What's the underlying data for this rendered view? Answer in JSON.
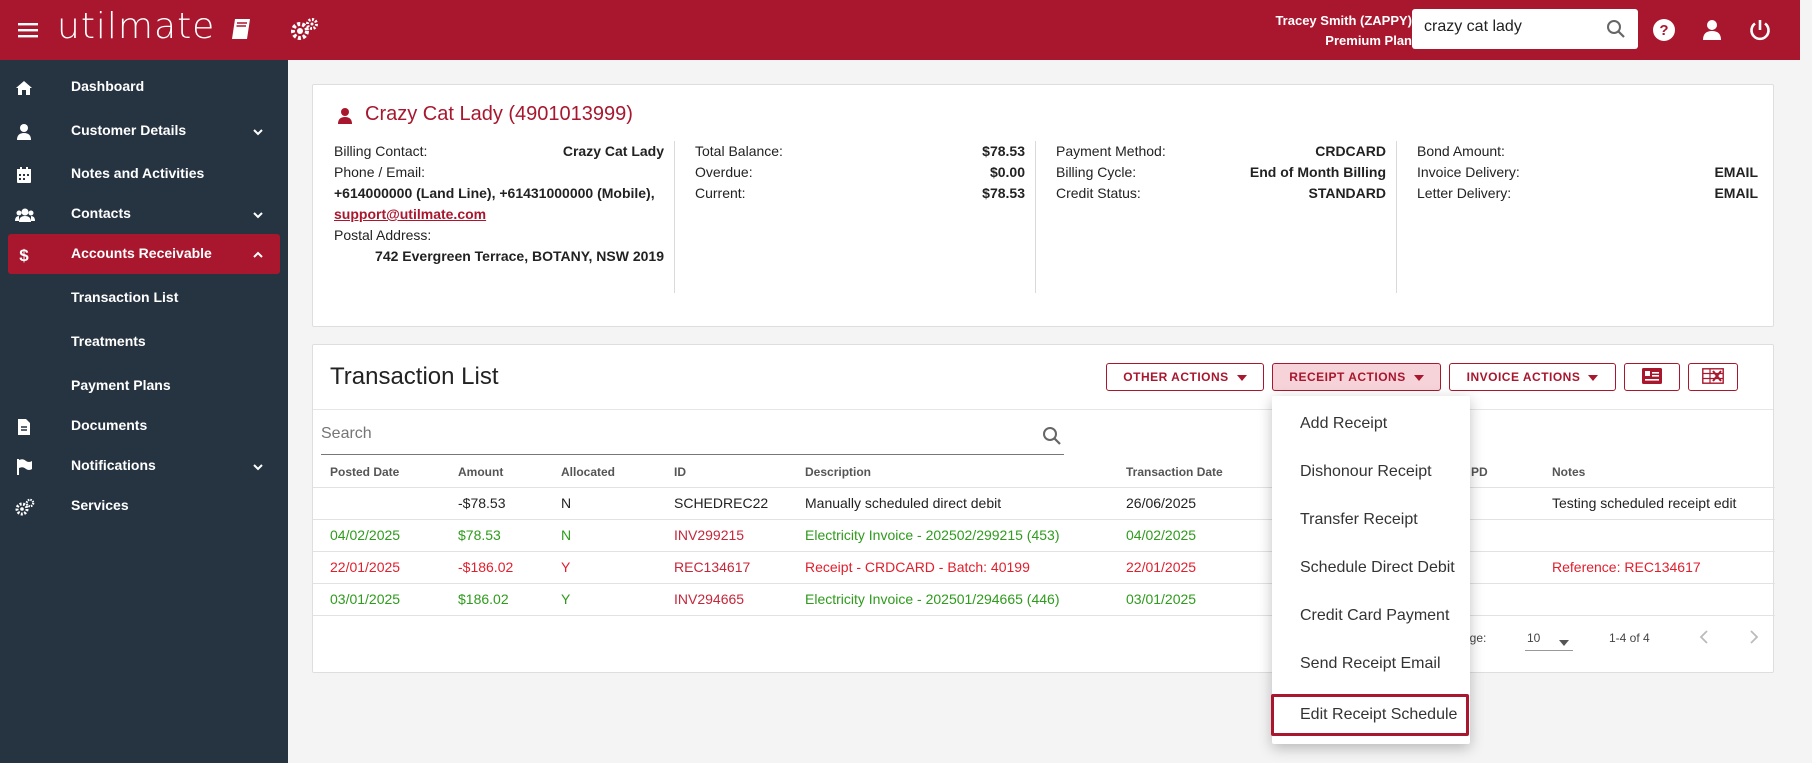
{
  "header": {
    "logo": "utilmate",
    "user_name": "Tracey Smith (ZAPPY)",
    "plan": "Premium Plan",
    "search_value": "crazy cat lady"
  },
  "sidebar": {
    "items": [
      {
        "label": "Dashboard"
      },
      {
        "label": "Customer Details"
      },
      {
        "label": "Notes and Activities"
      },
      {
        "label": "Contacts"
      },
      {
        "label": "Accounts Receivable"
      },
      {
        "label": "Transaction List"
      },
      {
        "label": "Treatments"
      },
      {
        "label": "Payment Plans"
      },
      {
        "label": "Documents"
      },
      {
        "label": "Notifications"
      },
      {
        "label": "Services"
      }
    ]
  },
  "customer": {
    "title": "Crazy Cat Lady (4901013999)",
    "billing_contact_label": "Billing Contact:",
    "billing_contact": "Crazy Cat Lady",
    "phone_email_label": "Phone / Email:",
    "phones": "+614000000 (Land Line), +61431000000 (Mobile),",
    "email": "support@utilmate.com",
    "postal_label": "Postal Address:",
    "postal": "742 Evergreen Terrace, BOTANY, NSW 2019",
    "total_balance_label": "Total Balance:",
    "total_balance": "$78.53",
    "overdue_label": "Overdue:",
    "overdue": "$0.00",
    "current_label": "Current:",
    "current": "$78.53",
    "payment_method_label": "Payment Method:",
    "payment_method": "CRDCARD",
    "billing_cycle_label": "Billing Cycle:",
    "billing_cycle": "End of Month Billing",
    "credit_status_label": "Credit Status:",
    "credit_status": "STANDARD",
    "bond_label": "Bond Amount:",
    "bond": "",
    "invoice_delivery_label": "Invoice Delivery:",
    "invoice_delivery": "EMAIL",
    "letter_delivery_label": "Letter Delivery:",
    "letter_delivery": "EMAIL"
  },
  "transactions": {
    "title": "Transaction List",
    "other_actions": "OTHER ACTIONS",
    "receipt_actions": "RECEIPT ACTIONS",
    "invoice_actions": "INVOICE ACTIONS",
    "search_placeholder": "Search",
    "columns": [
      "Posted Date",
      "Amount",
      "Allocated",
      "ID",
      "Description",
      "Transaction Date",
      "PD",
      "Notes"
    ],
    "rows": [
      {
        "posted": "",
        "amount": "-$78.53",
        "allocated": "N",
        "id": "SCHEDREC22",
        "description": "Manually scheduled direct debit",
        "txdate": "26/06/2025",
        "pd": "",
        "notes": "Testing scheduled receipt edit"
      },
      {
        "posted": "04/02/2025",
        "amount": "$78.53",
        "allocated": "N",
        "id": "INV299215",
        "description": "Electricity Invoice - 202502/299215 (453)",
        "txdate": "04/02/2025",
        "pd": "",
        "notes": ""
      },
      {
        "posted": "22/01/2025",
        "amount": "-$186.02",
        "allocated": "Y",
        "id": "REC134617",
        "description": "Receipt - CRDCARD - Batch: 40199",
        "txdate": "22/01/2025",
        "pd": "",
        "notes": "Reference: REC134617"
      },
      {
        "posted": "03/01/2025",
        "amount": "$186.02",
        "allocated": "Y",
        "id": "INV294665",
        "description": "Electricity Invoice - 202501/294665 (446)",
        "txdate": "03/01/2025",
        "pd": "",
        "notes": ""
      }
    ],
    "rows_per_page_label": "age:",
    "rows_per_page": "10",
    "range": "1-4 of 4"
  },
  "receipt_menu": {
    "items": [
      "Add Receipt",
      "Dishonour Receipt",
      "Transfer Receipt",
      "Schedule Direct Debit",
      "Credit Card Payment",
      "Send Receipt Email",
      "Edit Receipt Schedule"
    ]
  },
  "colors": {
    "brand": "#a8172e",
    "sidebar": "#263442",
    "invoice_green": "#2e9b1c",
    "receipt_red": "#e01f2d"
  }
}
